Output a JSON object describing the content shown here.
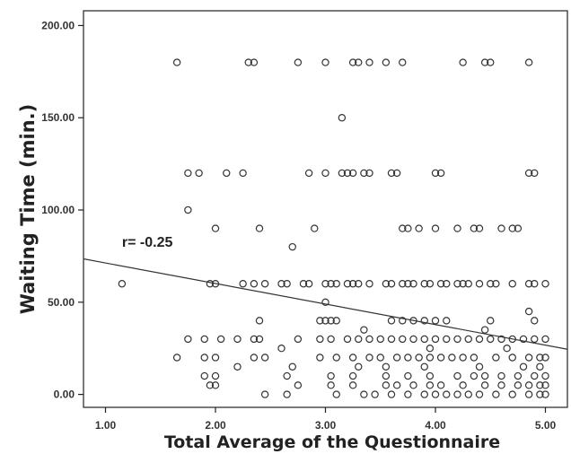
{
  "chart_data": {
    "type": "scatter",
    "title": "",
    "xlabel": "Total Average of the Questionnaire",
    "ylabel": "Waiting Time (min.)",
    "xlim": [
      0.8,
      5.2
    ],
    "ylim": [
      -7,
      208
    ],
    "x_ticks": [
      1,
      2,
      3,
      4,
      5
    ],
    "x_tick_labels": [
      "1.00",
      "2.00",
      "3.00",
      "4.00",
      "5.00"
    ],
    "y_ticks": [
      0,
      50,
      100,
      150,
      200
    ],
    "y_tick_labels": [
      "0.00",
      "50.00",
      "100.00",
      "150.00",
      "200.00"
    ],
    "grid": false,
    "annotation": {
      "text": "r= -0.25",
      "x": 1.15,
      "y": 80
    },
    "regression_line": {
      "x": [
        0.8,
        5.2
      ],
      "y": [
        73.5,
        24.5
      ]
    },
    "series": [
      {
        "name": "",
        "points": [
          [
            1.65,
            180
          ],
          [
            2.3,
            180
          ],
          [
            2.35,
            180
          ],
          [
            2.75,
            180
          ],
          [
            3.0,
            180
          ],
          [
            3.25,
            180
          ],
          [
            3.3,
            180
          ],
          [
            3.4,
            180
          ],
          [
            3.55,
            180
          ],
          [
            3.7,
            180
          ],
          [
            4.25,
            180
          ],
          [
            4.45,
            180
          ],
          [
            4.5,
            180
          ],
          [
            4.85,
            180
          ],
          [
            3.15,
            150
          ],
          [
            1.75,
            120
          ],
          [
            1.85,
            120
          ],
          [
            2.1,
            120
          ],
          [
            2.25,
            120
          ],
          [
            2.85,
            120
          ],
          [
            3.0,
            120
          ],
          [
            3.15,
            120
          ],
          [
            3.2,
            120
          ],
          [
            3.25,
            120
          ],
          [
            3.35,
            120
          ],
          [
            3.4,
            120
          ],
          [
            3.6,
            120
          ],
          [
            3.65,
            120
          ],
          [
            4.0,
            120
          ],
          [
            4.05,
            120
          ],
          [
            4.85,
            120
          ],
          [
            4.9,
            120
          ],
          [
            1.75,
            100
          ],
          [
            2.0,
            90
          ],
          [
            2.4,
            90
          ],
          [
            2.9,
            90
          ],
          [
            3.7,
            90
          ],
          [
            3.75,
            90
          ],
          [
            3.85,
            90
          ],
          [
            4.0,
            90
          ],
          [
            4.2,
            90
          ],
          [
            4.35,
            90
          ],
          [
            4.4,
            90
          ],
          [
            4.6,
            90
          ],
          [
            4.7,
            90
          ],
          [
            4.75,
            90
          ],
          [
            2.7,
            80
          ],
          [
            1.15,
            60
          ],
          [
            1.95,
            60
          ],
          [
            2.0,
            60
          ],
          [
            2.25,
            60
          ],
          [
            2.35,
            60
          ],
          [
            2.45,
            60
          ],
          [
            2.6,
            60
          ],
          [
            2.65,
            60
          ],
          [
            2.8,
            60
          ],
          [
            2.85,
            60
          ],
          [
            3.0,
            60
          ],
          [
            3.05,
            60
          ],
          [
            3.1,
            60
          ],
          [
            3.2,
            60
          ],
          [
            3.25,
            60
          ],
          [
            3.3,
            60
          ],
          [
            3.4,
            60
          ],
          [
            3.55,
            60
          ],
          [
            3.6,
            60
          ],
          [
            3.7,
            60
          ],
          [
            3.75,
            60
          ],
          [
            3.8,
            60
          ],
          [
            3.9,
            60
          ],
          [
            3.95,
            60
          ],
          [
            4.05,
            60
          ],
          [
            4.1,
            60
          ],
          [
            4.2,
            60
          ],
          [
            4.25,
            60
          ],
          [
            4.3,
            60
          ],
          [
            4.4,
            60
          ],
          [
            4.5,
            60
          ],
          [
            4.55,
            60
          ],
          [
            4.7,
            60
          ],
          [
            4.85,
            60
          ],
          [
            4.9,
            60
          ],
          [
            5.0,
            60
          ],
          [
            3.0,
            50
          ],
          [
            4.85,
            45
          ],
          [
            2.4,
            40
          ],
          [
            2.95,
            40
          ],
          [
            3.0,
            40
          ],
          [
            3.05,
            40
          ],
          [
            3.1,
            40
          ],
          [
            3.6,
            40
          ],
          [
            3.7,
            40
          ],
          [
            3.8,
            40
          ],
          [
            3.9,
            40
          ],
          [
            4.0,
            40
          ],
          [
            4.1,
            40
          ],
          [
            4.5,
            40
          ],
          [
            4.9,
            40
          ],
          [
            3.35,
            35
          ],
          [
            4.45,
            35
          ],
          [
            1.75,
            30
          ],
          [
            1.9,
            30
          ],
          [
            2.05,
            30
          ],
          [
            2.2,
            30
          ],
          [
            2.35,
            30
          ],
          [
            2.4,
            30
          ],
          [
            2.75,
            30
          ],
          [
            2.95,
            30
          ],
          [
            3.05,
            30
          ],
          [
            3.2,
            30
          ],
          [
            3.3,
            30
          ],
          [
            3.4,
            30
          ],
          [
            3.5,
            30
          ],
          [
            3.6,
            30
          ],
          [
            3.7,
            30
          ],
          [
            3.8,
            30
          ],
          [
            3.9,
            30
          ],
          [
            4.0,
            30
          ],
          [
            4.1,
            30
          ],
          [
            4.2,
            30
          ],
          [
            4.3,
            30
          ],
          [
            4.4,
            30
          ],
          [
            4.5,
            30
          ],
          [
            4.6,
            30
          ],
          [
            4.7,
            30
          ],
          [
            4.8,
            30
          ],
          [
            4.9,
            30
          ],
          [
            5.0,
            30
          ],
          [
            2.6,
            25
          ],
          [
            3.95,
            25
          ],
          [
            4.65,
            25
          ],
          [
            1.65,
            20
          ],
          [
            1.9,
            20
          ],
          [
            2.0,
            20
          ],
          [
            2.35,
            20
          ],
          [
            2.45,
            20
          ],
          [
            2.95,
            20
          ],
          [
            3.1,
            20
          ],
          [
            3.25,
            20
          ],
          [
            3.4,
            20
          ],
          [
            3.5,
            20
          ],
          [
            3.65,
            20
          ],
          [
            3.75,
            20
          ],
          [
            3.85,
            20
          ],
          [
            3.95,
            20
          ],
          [
            4.05,
            20
          ],
          [
            4.15,
            20
          ],
          [
            4.25,
            20
          ],
          [
            4.35,
            20
          ],
          [
            4.55,
            20
          ],
          [
            4.7,
            20
          ],
          [
            4.85,
            20
          ],
          [
            4.95,
            20
          ],
          [
            5.0,
            20
          ],
          [
            2.2,
            15
          ],
          [
            2.7,
            15
          ],
          [
            3.3,
            15
          ],
          [
            3.55,
            15
          ],
          [
            3.9,
            15
          ],
          [
            4.4,
            15
          ],
          [
            4.8,
            15
          ],
          [
            4.95,
            15
          ],
          [
            1.9,
            10
          ],
          [
            2.0,
            10
          ],
          [
            2.65,
            10
          ],
          [
            3.05,
            10
          ],
          [
            3.25,
            10
          ],
          [
            3.55,
            10
          ],
          [
            3.75,
            10
          ],
          [
            3.95,
            10
          ],
          [
            4.2,
            10
          ],
          [
            4.35,
            10
          ],
          [
            4.45,
            10
          ],
          [
            4.6,
            10
          ],
          [
            4.75,
            10
          ],
          [
            4.9,
            10
          ],
          [
            5.0,
            10
          ],
          [
            1.95,
            5
          ],
          [
            2.0,
            5
          ],
          [
            2.75,
            5
          ],
          [
            3.05,
            5
          ],
          [
            3.25,
            5
          ],
          [
            3.55,
            5
          ],
          [
            3.65,
            5
          ],
          [
            3.8,
            5
          ],
          [
            3.95,
            5
          ],
          [
            4.05,
            5
          ],
          [
            4.25,
            5
          ],
          [
            4.45,
            5
          ],
          [
            4.6,
            5
          ],
          [
            4.75,
            5
          ],
          [
            4.85,
            5
          ],
          [
            4.95,
            5
          ],
          [
            5.0,
            5
          ],
          [
            2.45,
            0
          ],
          [
            2.65,
            0
          ],
          [
            3.1,
            0
          ],
          [
            3.35,
            0
          ],
          [
            3.45,
            0
          ],
          [
            3.6,
            0
          ],
          [
            3.75,
            0
          ],
          [
            3.9,
            0
          ],
          [
            4.0,
            0
          ],
          [
            4.1,
            0
          ],
          [
            4.2,
            0
          ],
          [
            4.3,
            0
          ],
          [
            4.4,
            0
          ],
          [
            4.55,
            0
          ],
          [
            4.7,
            0
          ],
          [
            4.85,
            0
          ],
          [
            4.95,
            0
          ],
          [
            5.0,
            0
          ]
        ]
      }
    ]
  },
  "colors": {
    "point_stroke": "#333333",
    "line": "#333333",
    "axis": "#222222",
    "background": "#ffffff"
  }
}
